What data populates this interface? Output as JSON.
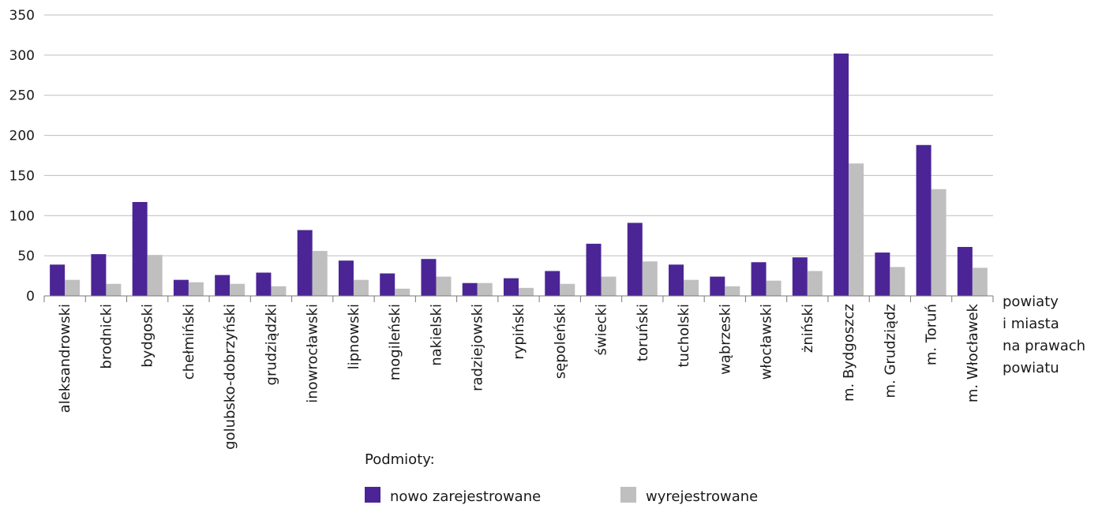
{
  "chart_data": {
    "type": "bar",
    "title": "",
    "xlabel": [
      "powiaty",
      "i miasta",
      "na prawach",
      "powiatu"
    ],
    "ylabel": "",
    "ylim": [
      0,
      350
    ],
    "yticks": [
      0,
      50,
      100,
      150,
      200,
      250,
      300,
      350
    ],
    "grid": true,
    "legend_title": "Podmioty:",
    "legend_position": "bottom",
    "categories": [
      "aleksandrowski",
      "brodnicki",
      "bydgoski",
      "chełmiński",
      "golubsko-dobrzyński",
      "grudziądzki",
      "inowrocławski",
      "lipnowski",
      "mogileński",
      "nakielski",
      "radziejowski",
      "rypiński",
      "sępoleński",
      "świecki",
      "toruński",
      "tucholski",
      "wąbrzeski",
      "włocławski",
      "żniński",
      "m. Bydgoszcz",
      "m. Grudziądz",
      "m. Toruń",
      "m. Włocławek"
    ],
    "series": [
      {
        "name": "nowo zarejestrowane",
        "color": "#4b2596",
        "values": [
          39,
          52,
          117,
          20,
          26,
          29,
          82,
          44,
          28,
          46,
          16,
          22,
          31,
          65,
          91,
          39,
          24,
          42,
          48,
          302,
          54,
          188,
          61
        ]
      },
      {
        "name": "wyrejestrowane",
        "color": "#bfbfbf",
        "values": [
          20,
          15,
          51,
          17,
          15,
          12,
          56,
          20,
          9,
          24,
          16,
          10,
          15,
          24,
          43,
          20,
          12,
          19,
          31,
          165,
          36,
          133,
          35
        ]
      }
    ]
  }
}
